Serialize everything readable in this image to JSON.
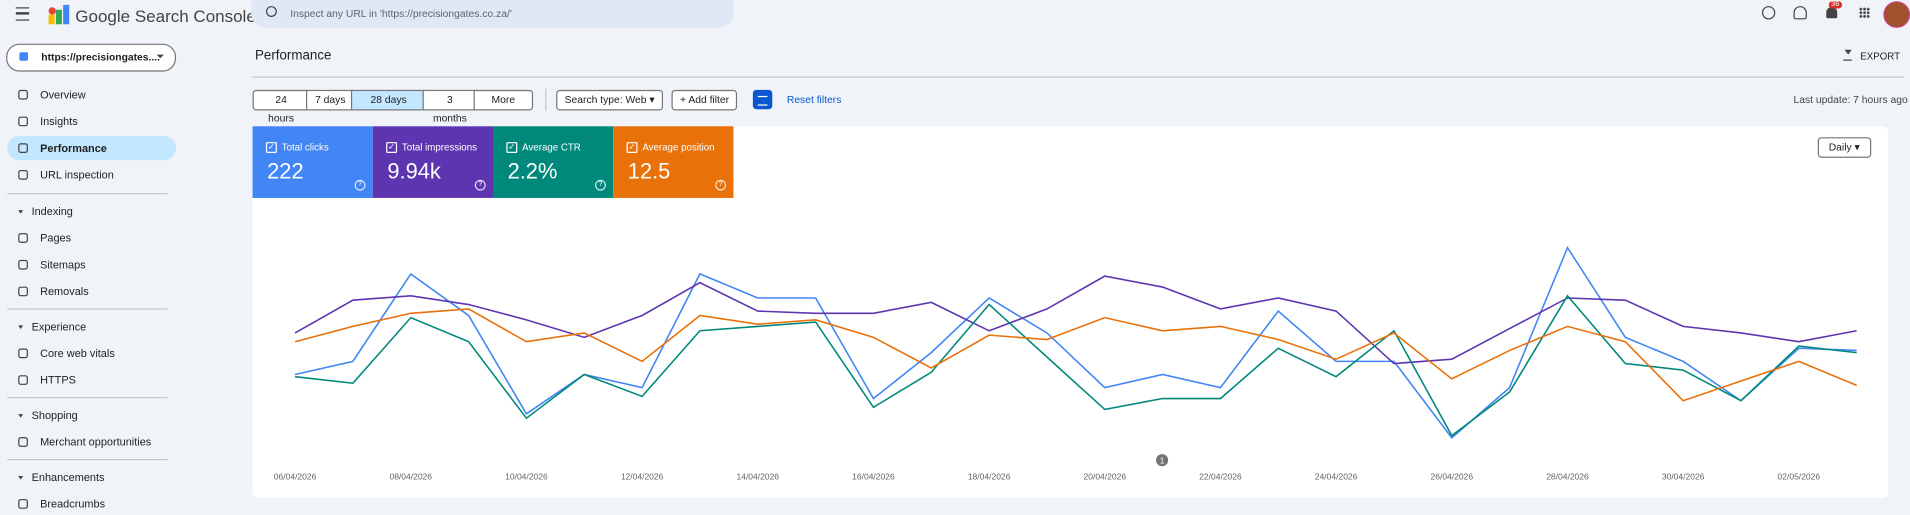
{
  "header": {
    "product": "Google Search Console",
    "search_placeholder": "Inspect any URL in 'https://precisiongates.co.za/'",
    "notifications": "36"
  },
  "sidebar": {
    "property": "https://precisiongates....",
    "top": [
      "Overview",
      "Insights",
      "Performance",
      "URL inspection"
    ],
    "groups": [
      {
        "title": "Indexing",
        "items": [
          "Pages",
          "Sitemaps",
          "Removals"
        ]
      },
      {
        "title": "Experience",
        "items": [
          "Core web vitals",
          "HTTPS"
        ]
      },
      {
        "title": "Shopping",
        "items": [
          "Merchant opportunities"
        ]
      },
      {
        "title": "Enhancements",
        "items": [
          "Breadcrumbs"
        ]
      }
    ]
  },
  "toolbar": {
    "title": "Performance",
    "export": "EXPORT",
    "last_update": "Last update: 7 hours ago",
    "date_ranges": [
      "24 hours",
      "7 days",
      "28 days",
      "3 months",
      "More"
    ],
    "search_type": "Search type: Web",
    "add_filter": "Add filter",
    "reset": "Reset filters",
    "granularity": "Daily"
  },
  "chart_data": {
    "type": "line",
    "ylim": [
      0,
      100
    ],
    "annotation": "1",
    "x": [
      "06/04/2026",
      null,
      "08/04/2026",
      null,
      "10/04/2026",
      null,
      "12/04/2026",
      null,
      "14/04/2026",
      null,
      "16/04/2026",
      null,
      "18/04/2026",
      null,
      "20/04/2026",
      null,
      "22/04/2026",
      null,
      "24/04/2026",
      null,
      "26/04/2026",
      null,
      "28/04/2026",
      null,
      "30/04/2026",
      null,
      "02/05/2026",
      null
    ],
    "series": [
      {
        "name": "Total clicks",
        "total": "222",
        "color": "#4285f4",
        "values": [
          37,
          43,
          83,
          64,
          19,
          37,
          31,
          83,
          72,
          72,
          26,
          47,
          72,
          56,
          31,
          37,
          31,
          66,
          43,
          43,
          8,
          31,
          95,
          54,
          43,
          25,
          49,
          48
        ]
      },
      {
        "name": "Total impressions",
        "total": "9.94k",
        "color": "#5e35b1",
        "values": [
          56,
          71,
          73,
          69,
          62,
          54,
          64,
          79,
          66,
          65,
          65,
          70,
          57,
          67,
          82,
          77,
          67,
          72,
          66,
          42,
          44,
          58,
          72,
          71,
          59,
          56,
          52,
          57
        ]
      },
      {
        "name": "Average CTR",
        "total": "2.2%",
        "color": "#00897b",
        "values": [
          36,
          33,
          63,
          52,
          17,
          37,
          27,
          57,
          59,
          61,
          22,
          38,
          69,
          45,
          21,
          26,
          26,
          49,
          36,
          57,
          9,
          29,
          73,
          42,
          39,
          25,
          50,
          47
        ]
      },
      {
        "name": "Average position",
        "total": "12.5",
        "color": "#e8710a",
        "values": [
          52,
          59,
          65,
          67,
          52,
          56,
          43,
          64,
          60,
          62,
          54,
          40,
          55,
          53,
          63,
          57,
          59,
          53,
          44,
          56,
          35,
          48,
          59,
          52,
          25,
          34,
          43,
          32
        ]
      }
    ]
  }
}
